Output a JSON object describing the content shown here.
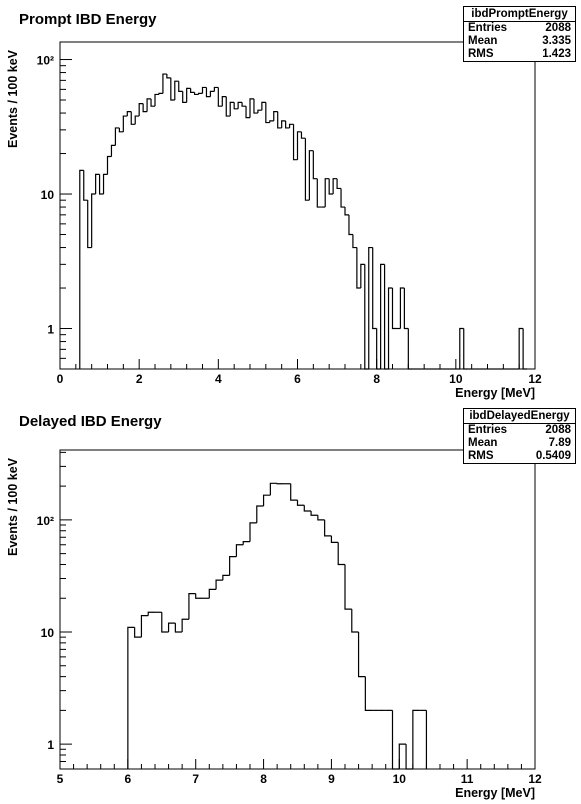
{
  "chart_data": [
    {
      "type": "bar",
      "title": "Prompt IBD Energy",
      "xlabel": "Energy [MeV]",
      "ylabel": "Events / 100 keV",
      "yscale": "log",
      "xlim": [
        0,
        12
      ],
      "ylim": [
        0.5,
        135
      ],
      "bin_width": 0.1,
      "x_ticks": [
        0,
        2,
        4,
        6,
        8,
        10,
        12
      ],
      "y_ticks": [
        {
          "value": 1,
          "label": "1"
        },
        {
          "value": 10,
          "label": "10"
        },
        {
          "value": 100,
          "label": "10²"
        }
      ],
      "grid": false,
      "stats": {
        "name": "ibdPromptEnergy",
        "entries": "2088",
        "mean": "3.335",
        "rms": "1.423"
      },
      "bins_start": 0.5,
      "values": [
        15,
        9,
        4,
        10,
        14,
        10,
        14,
        19,
        23,
        31,
        29,
        38,
        41,
        33,
        38,
        47,
        41,
        51,
        45,
        55,
        56,
        78,
        73,
        50,
        69,
        58,
        48,
        61,
        57,
        55,
        56,
        62,
        53,
        58,
        62,
        45,
        53,
        38,
        48,
        43,
        48,
        45,
        37,
        51,
        40,
        42,
        48,
        34,
        35,
        41,
        31,
        35,
        31,
        33,
        18,
        29,
        26,
        9,
        21,
        13,
        8,
        8,
        13,
        10,
        13,
        11,
        8,
        7,
        5,
        4,
        2,
        3,
        0.5,
        4,
        1,
        0.5,
        3,
        0.5,
        2,
        1,
        1,
        2,
        1,
        0.5,
        0.5,
        0.5,
        0.5,
        0.5,
        0.5,
        0.5,
        0.5,
        0.5,
        0.5,
        0.5,
        0.5,
        0.5,
        1,
        0.5,
        0.5,
        0.5,
        0.5,
        0.5,
        0.5,
        0.5,
        0.5,
        0.5,
        0.5,
        0.5,
        0.5,
        0.5,
        0.5,
        1,
        0.5
      ]
    },
    {
      "type": "bar",
      "title": "Delayed IBD Energy",
      "xlabel": "Energy [MeV]",
      "ylabel": "Events / 100 keV",
      "yscale": "log",
      "xlim": [
        5,
        12
      ],
      "ylim": [
        0.6,
        420
      ],
      "bin_width": 0.1,
      "x_ticks": [
        5,
        6,
        7,
        8,
        9,
        10,
        11,
        12
      ],
      "y_ticks": [
        {
          "value": 1,
          "label": "1"
        },
        {
          "value": 10,
          "label": "10"
        },
        {
          "value": 100,
          "label": "10²"
        }
      ],
      "grid": false,
      "stats": {
        "name": "ibdDelayedEnergy",
        "entries": "2088",
        "mean": "7.89",
        "rms": "0.5409"
      },
      "bins_start": 6.0,
      "values": [
        11,
        9,
        14,
        15,
        15,
        10,
        12,
        10,
        13,
        22,
        20,
        20,
        24,
        29,
        32,
        47,
        60,
        64,
        94,
        133,
        166,
        212,
        210,
        210,
        150,
        135,
        120,
        110,
        100,
        72,
        63,
        40,
        16,
        10,
        4,
        2,
        2,
        2,
        2,
        0.6,
        1,
        0.6,
        2,
        2
      ]
    }
  ]
}
